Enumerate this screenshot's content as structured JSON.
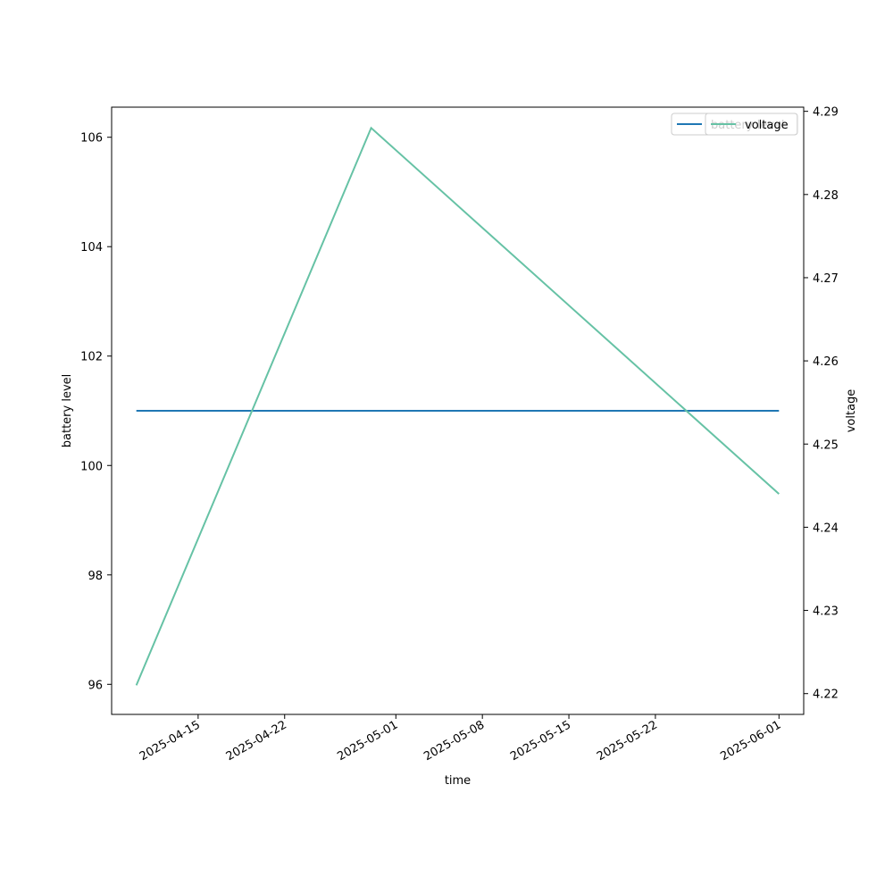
{
  "chart_data": {
    "type": "line",
    "xlabel": "time",
    "ylabel": "battery level",
    "y2label": "voltage",
    "x_tick_labels": [
      "2025-04-15",
      "2025-04-22",
      "2025-05-01",
      "2025-05-08",
      "2025-05-15",
      "2025-05-22",
      "2025-06-01"
    ],
    "y_ticks": [
      96,
      98,
      100,
      102,
      104,
      106
    ],
    "y2_ticks": [
      4.22,
      4.23,
      4.24,
      4.25,
      4.26,
      4.27,
      4.28,
      4.29
    ],
    "xlim": [
      "2025-04-08",
      "2025-06-03"
    ],
    "ylim": [
      95.45,
      106.55
    ],
    "y2lim": [
      4.2175,
      4.2905
    ],
    "grid": false,
    "legend_placement": "top-right",
    "series": [
      {
        "name": "battery level",
        "axis": "left",
        "color": "#1f77b4",
        "x": [
          "2025-04-10",
          "2025-06-01"
        ],
        "y": [
          101,
          101
        ]
      },
      {
        "name": "voltage",
        "axis": "right",
        "color": "#66c2a5",
        "x": [
          "2025-04-10",
          "2025-04-29",
          "2025-06-01"
        ],
        "y": [
          4.221,
          4.288,
          4.244
        ]
      }
    ]
  }
}
